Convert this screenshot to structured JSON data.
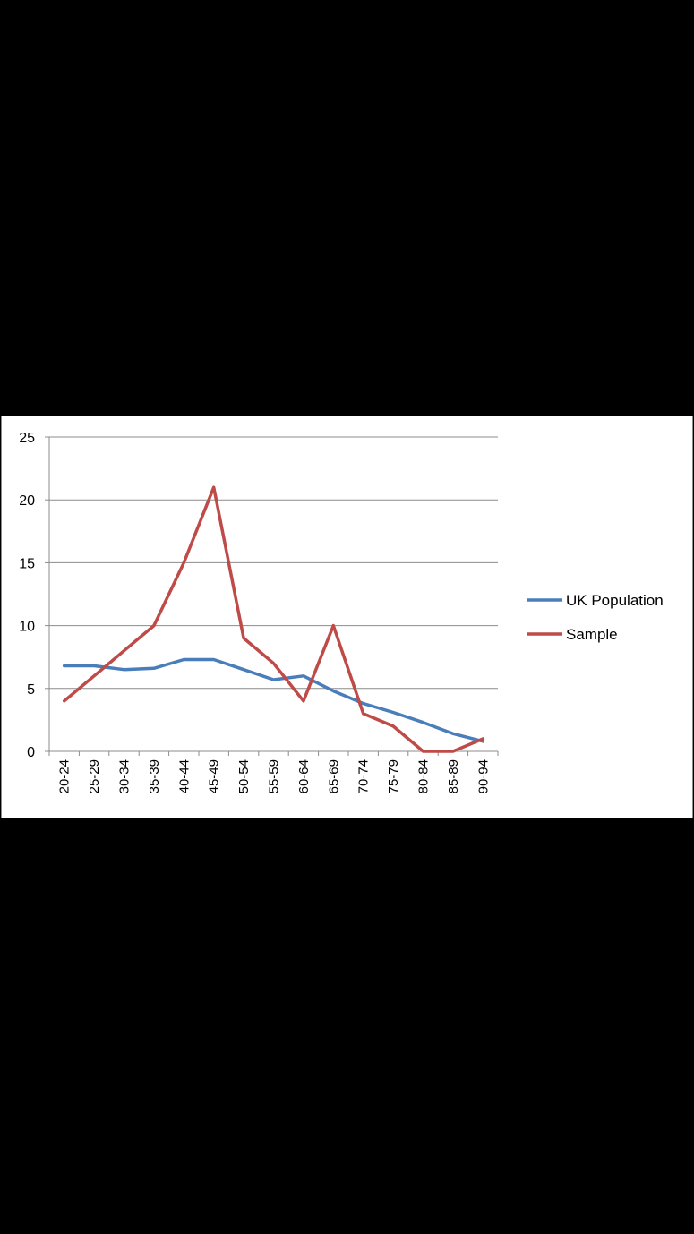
{
  "chart_data": {
    "type": "line",
    "categories": [
      "20-24",
      "25-29",
      "30-34",
      "35-39",
      "40-44",
      "45-49",
      "50-54",
      "55-59",
      "60-64",
      "65-69",
      "70-74",
      "75-79",
      "80-84",
      "85-89",
      "90-94"
    ],
    "series": [
      {
        "name": "UK Population",
        "color": "#4a7ebb",
        "values": [
          6.8,
          6.8,
          6.5,
          6.6,
          7.3,
          7.3,
          6.5,
          5.7,
          6.0,
          4.8,
          3.8,
          3.1,
          2.3,
          1.4,
          0.8
        ]
      },
      {
        "name": "Sample",
        "color": "#be4b48",
        "values": [
          4,
          6,
          8,
          10,
          15,
          21,
          9,
          7,
          4,
          10,
          3,
          2,
          0,
          0,
          1
        ]
      }
    ],
    "y_ticks": [
      "0",
      "5",
      "10",
      "15",
      "20",
      "25"
    ],
    "ylim": [
      0,
      25
    ],
    "grid": true,
    "legend_position": "right",
    "gridline_color": "#8c8c8c"
  }
}
